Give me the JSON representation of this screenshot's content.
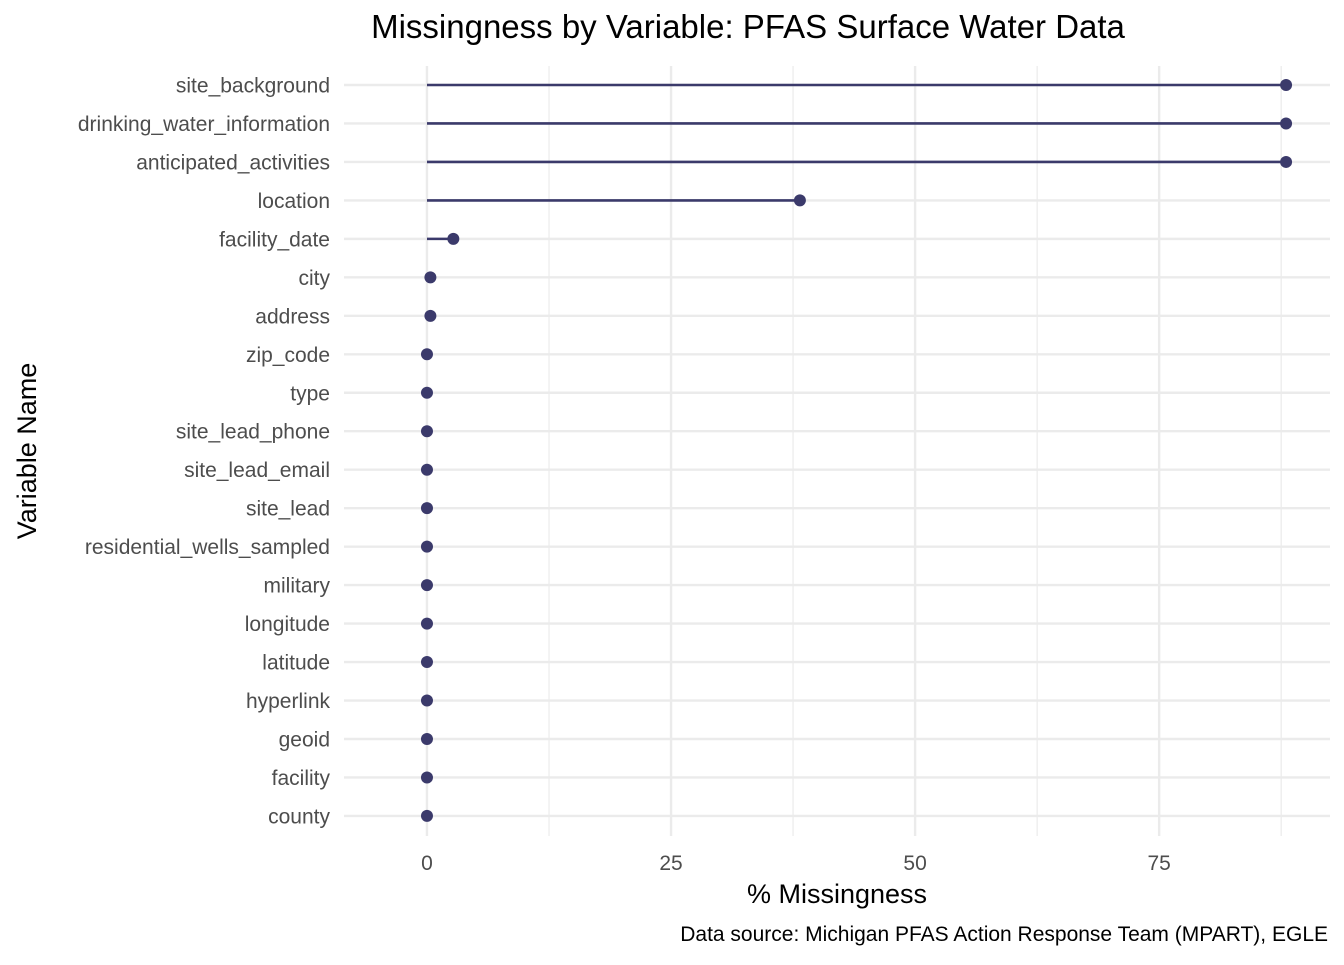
{
  "chart_data": {
    "type": "lollipop",
    "title": "Missingness by Variable: PFAS Surface Water Data",
    "xlabel": "% Missingness",
    "ylabel": "Variable Name",
    "caption": "Data source: Michigan PFAS Action Response Team (MPART), EGLE",
    "xlim": [
      -8.5,
      92.5
    ],
    "x_ticks": [
      0,
      25,
      50,
      75
    ],
    "x_tick_labels": [
      "0",
      "25",
      "50",
      "75"
    ],
    "x_minor_ticks": [
      12.5,
      37.5,
      62.5,
      87.5
    ],
    "grid": true,
    "categories": [
      "site_background",
      "drinking_water_information",
      "anticipated_activities",
      "location",
      "facility_date",
      "city",
      "address",
      "zip_code",
      "type",
      "site_lead_phone",
      "site_lead_email",
      "site_lead",
      "residential_wells_sampled",
      "military",
      "longitude",
      "latitude",
      "hyperlink",
      "geoid",
      "facility",
      "county"
    ],
    "values": [
      88,
      88,
      88,
      38.2,
      2.7,
      0.35,
      0.35,
      0,
      0,
      0,
      0,
      0,
      0,
      0,
      0,
      0,
      0,
      0,
      0,
      0
    ],
    "color": "#3b3a6b"
  }
}
